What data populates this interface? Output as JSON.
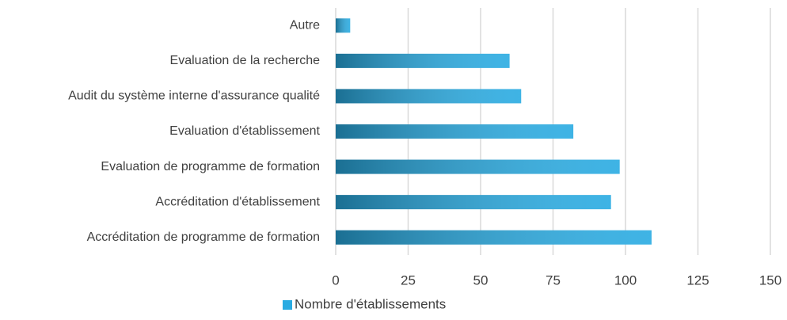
{
  "chart_data": {
    "type": "bar",
    "orientation": "horizontal",
    "categories": [
      "Autre",
      "Evaluation de la recherche",
      "Audit du système interne d'assurance qualité",
      "Evaluation d'établissement",
      "Evaluation de programme de formation",
      "Accréditation d'établissement",
      "Accréditation de programme de formation"
    ],
    "series": [
      {
        "name": "Nombre d'établissements",
        "color": "#29abe2",
        "values": [
          5,
          60,
          64,
          82,
          98,
          95,
          109
        ]
      }
    ],
    "xlim": [
      0,
      150
    ],
    "xticks": [
      0,
      25,
      50,
      75,
      100,
      125,
      150
    ],
    "grid": true,
    "legend": "bottom"
  }
}
